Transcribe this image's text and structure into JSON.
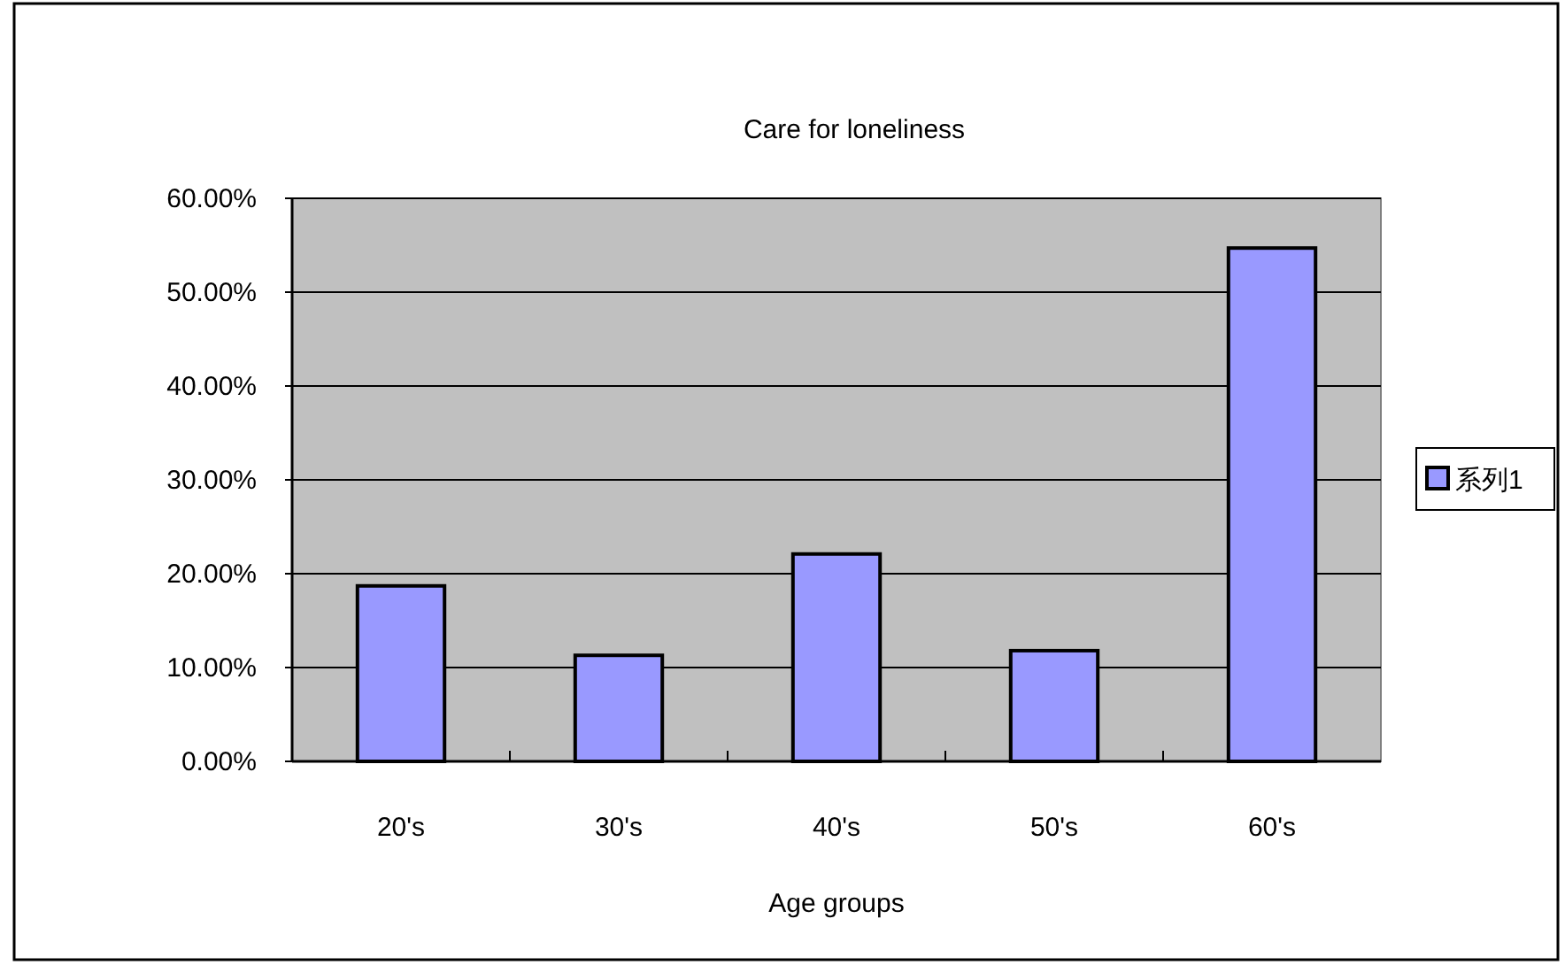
{
  "chart_data": {
    "type": "bar",
    "title": "Care for loneliness",
    "xlabel": "Age groups",
    "categories": [
      "20's",
      "30's",
      "40's",
      "50's",
      "60's"
    ],
    "series": [
      {
        "name": "系列1",
        "color": "#9999ff",
        "values": [
          18.7,
          11.3,
          22.1,
          11.8,
          54.7
        ]
      }
    ],
    "ylim": [
      0,
      60
    ],
    "yticks": [
      {
        "value": 0,
        "label": "0.00%"
      },
      {
        "value": 10,
        "label": "10.00%"
      },
      {
        "value": 20,
        "label": "20.00%"
      },
      {
        "value": 30,
        "label": "30.00%"
      },
      {
        "value": 40,
        "label": "40.00%"
      },
      {
        "value": 50,
        "label": "50.00%"
      },
      {
        "value": 60,
        "label": "60.00%"
      }
    ],
    "grid": "y",
    "legend": "right"
  }
}
